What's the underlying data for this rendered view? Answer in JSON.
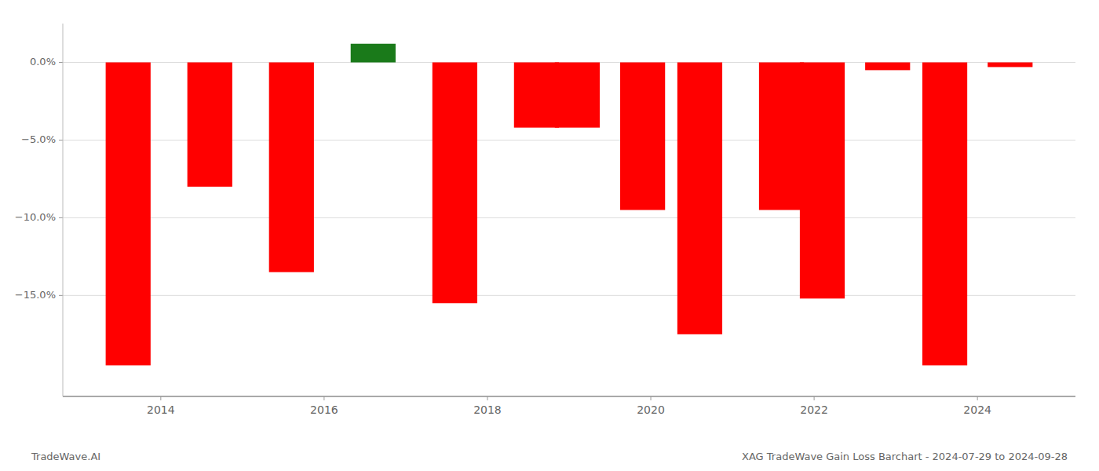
{
  "chart_data": {
    "type": "bar",
    "title": "XAG TradeWave Gain Loss Barchart - 2024-07-29 to 2024-09-28",
    "annotations": [
      "TradeWave.AI"
    ],
    "x": [
      2013.6,
      2014.6,
      2015.6,
      2016.6,
      2017.6,
      2018.6,
      2019.1,
      2019.9,
      2020.6,
      2021.6,
      2022.1,
      2022.9,
      2023.6,
      2024.4
    ],
    "values": [
      -19.5,
      -8.0,
      -13.5,
      1.2,
      -15.5,
      -4.2,
      -4.2,
      -9.5,
      -17.5,
      -9.5,
      -15.2,
      -0.5,
      -19.5,
      -0.3
    ],
    "colors": [
      "#ff0000",
      "#ff0000",
      "#ff0000",
      "#1a7a1a",
      "#ff0000",
      "#ff0000",
      "#ff0000",
      "#ff0000",
      "#ff0000",
      "#ff0000",
      "#ff0000",
      "#ff0000",
      "#ff0000",
      "#ff0000"
    ],
    "xlim": [
      2012.8,
      2025.2
    ],
    "xticks": [
      2014,
      2016,
      2018,
      2020,
      2022,
      2024
    ],
    "ylim": [
      -21.5,
      2.5
    ],
    "yticks": [
      {
        "value": 0.0,
        "label": "0.0%"
      },
      {
        "value": -5.0,
        "label": "−5.0%"
      },
      {
        "value": -10.0,
        "label": "−10.0%"
      },
      {
        "value": -15.0,
        "label": "−15.0%"
      }
    ],
    "grid": true
  }
}
